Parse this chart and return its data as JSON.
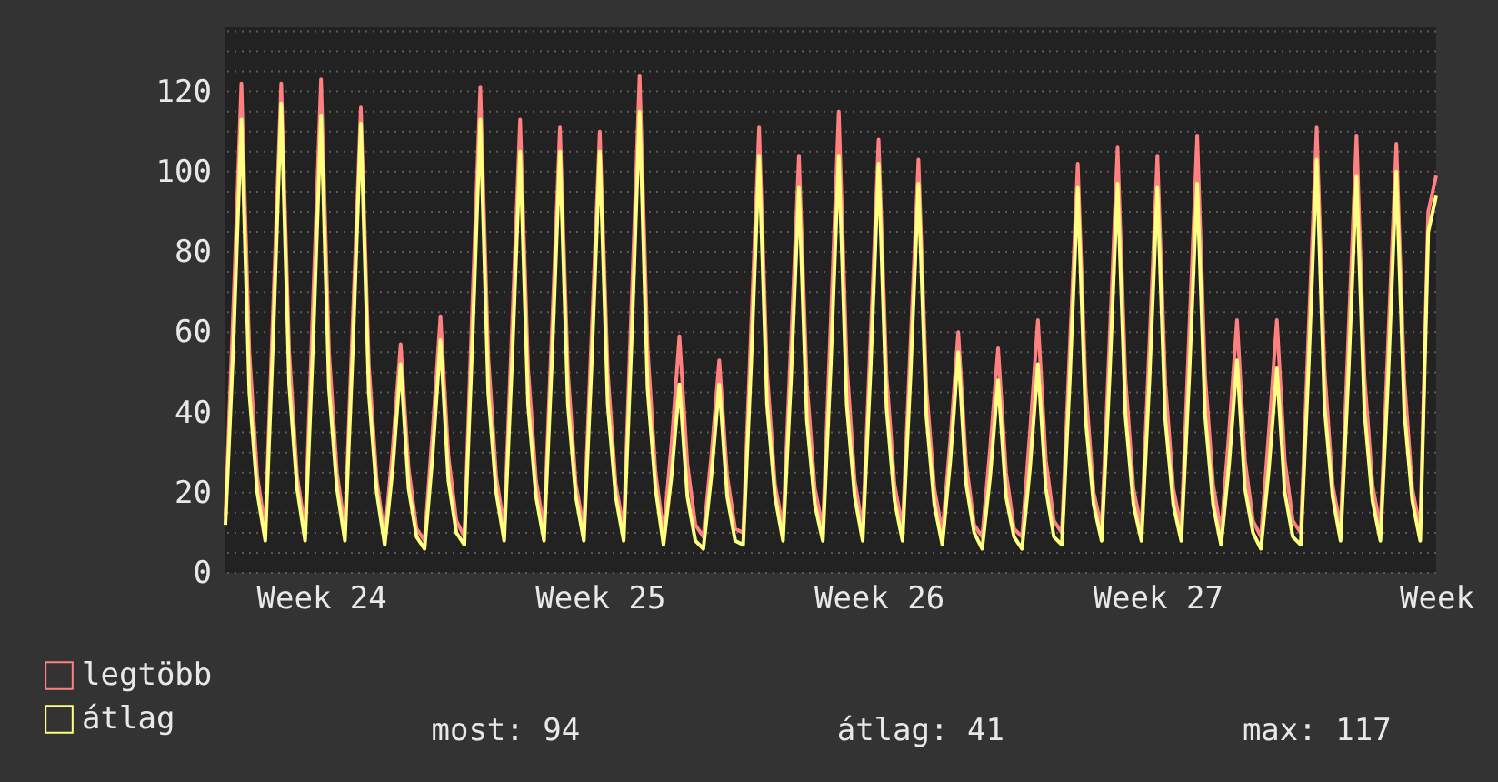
{
  "chart_data": {
    "type": "line",
    "categories": [
      null,
      null,
      null,
      null,
      null,
      null,
      null,
      null,
      null,
      null,
      null,
      null,
      "Week 24",
      null,
      null,
      null,
      null,
      null,
      null,
      null,
      null,
      null,
      null,
      null,
      null,
      null,
      null,
      null,
      null,
      null,
      null,
      null,
      null,
      null,
      null,
      null,
      null,
      null,
      null,
      null,
      null,
      null,
      null,
      null,
      null,
      null,
      null,
      "Week 25",
      null,
      null,
      null,
      null,
      null,
      null,
      null,
      null,
      null,
      null,
      null,
      null,
      null,
      null,
      null,
      null,
      null,
      null,
      null,
      null,
      null,
      null,
      null,
      null,
      null,
      null,
      null,
      null,
      null,
      null,
      null,
      null,
      null,
      null,
      "Week 26",
      null,
      null,
      null,
      null,
      null,
      null,
      null,
      null,
      null,
      null,
      null,
      null,
      null,
      null,
      null,
      null,
      null,
      null,
      null,
      null,
      null,
      null,
      null,
      null,
      null,
      null,
      null,
      null,
      null,
      null,
      null,
      null,
      null,
      null,
      "Week 27",
      null,
      null,
      null,
      null,
      null,
      null,
      null,
      null,
      null,
      null,
      null,
      null,
      null,
      null,
      null,
      null,
      null,
      null,
      null,
      null,
      null,
      null,
      null,
      null,
      null,
      null,
      null,
      null,
      null,
      null,
      null,
      null,
      null,
      null,
      "Week"
    ],
    "series": [
      {
        "name": "legtöbb",
        "color": "#ff8080",
        "values": [
          14,
          67,
          122,
          55,
          24,
          11,
          67,
          122,
          55,
          24,
          11,
          68,
          123,
          55,
          25,
          11,
          64,
          116,
          52,
          23,
          9,
          31,
          57,
          26,
          11,
          8,
          35,
          64,
          29,
          13,
          9,
          67,
          121,
          54,
          24,
          11,
          62,
          113,
          51,
          23,
          11,
          61,
          111,
          50,
          22,
          11,
          61,
          110,
          50,
          22,
          11,
          68,
          124,
          56,
          25,
          10,
          32,
          59,
          27,
          12,
          9,
          29,
          53,
          24,
          11,
          10,
          61,
          111,
          50,
          22,
          11,
          57,
          104,
          47,
          21,
          11,
          63,
          115,
          52,
          23,
          11,
          59,
          108,
          49,
          22,
          11,
          57,
          103,
          46,
          21,
          10,
          33,
          60,
          27,
          12,
          9,
          31,
          56,
          25,
          11,
          9,
          35,
          63,
          28,
          13,
          10,
          56,
          102,
          46,
          20,
          11,
          58,
          106,
          48,
          21,
          11,
          57,
          104,
          47,
          21,
          11,
          60,
          109,
          49,
          22,
          10,
          35,
          63,
          28,
          13,
          9,
          35,
          63,
          28,
          13,
          10,
          61,
          111,
          50,
          22,
          11,
          60,
          109,
          49,
          22,
          11,
          59,
          107,
          48,
          21,
          11,
          90,
          99
        ]
      },
      {
        "name": "átlag",
        "color": "#ffff80",
        "values": [
          12,
          57,
          113,
          45,
          20,
          8,
          59,
          117,
          47,
          21,
          8,
          57,
          114,
          46,
          21,
          8,
          56,
          112,
          45,
          20,
          7,
          26,
          52,
          21,
          9,
          6,
          29,
          58,
          23,
          10,
          7,
          57,
          113,
          45,
          20,
          8,
          53,
          105,
          42,
          19,
          8,
          53,
          105,
          42,
          19,
          8,
          53,
          105,
          42,
          19,
          8,
          58,
          115,
          46,
          21,
          7,
          24,
          47,
          19,
          8,
          6,
          24,
          47,
          19,
          8,
          7,
          52,
          104,
          42,
          19,
          8,
          48,
          96,
          38,
          17,
          8,
          52,
          104,
          42,
          19,
          8,
          51,
          102,
          41,
          18,
          8,
          49,
          97,
          39,
          17,
          7,
          28,
          55,
          22,
          10,
          6,
          24,
          48,
          19,
          9,
          6,
          26,
          52,
          21,
          9,
          7,
          48,
          96,
          38,
          17,
          8,
          49,
          97,
          39,
          17,
          8,
          48,
          96,
          38,
          17,
          8,
          49,
          97,
          39,
          17,
          7,
          27,
          53,
          21,
          10,
          6,
          26,
          51,
          20,
          9,
          7,
          52,
          103,
          41,
          19,
          8,
          50,
          99,
          40,
          18,
          8,
          50,
          100,
          40,
          18,
          8,
          85,
          94
        ]
      }
    ],
    "ylim": [
      0,
      136
    ],
    "yticks": [
      0,
      20,
      40,
      60,
      80,
      100,
      120,
      {
        "value": 5,
        "label": null
      },
      {
        "value": 10,
        "label": null
      },
      {
        "value": 15,
        "label": null
      },
      {
        "value": 25,
        "label": null
      },
      {
        "value": 30,
        "label": null
      },
      {
        "value": 35,
        "label": null
      },
      {
        "value": 45,
        "label": null
      },
      {
        "value": 50,
        "label": null
      },
      {
        "value": 55,
        "label": null
      },
      {
        "value": 65,
        "label": null
      },
      {
        "value": 70,
        "label": null
      },
      {
        "value": 75,
        "label": null
      },
      {
        "value": 85,
        "label": null
      },
      {
        "value": 90,
        "label": null
      },
      {
        "value": 95,
        "label": null
      },
      {
        "value": 105,
        "label": null
      },
      {
        "value": 110,
        "label": null
      },
      {
        "value": 115,
        "label": null
      },
      {
        "value": 125,
        "label": null
      },
      {
        "value": 130,
        "label": null
      },
      {
        "value": 135,
        "label": null
      }
    ],
    "grid": "y",
    "legend": "bottom",
    "marker": "none",
    "line_style": "solid",
    "annotations": [
      "most: 94",
      "átlag: 41",
      "max: 117"
    ]
  }
}
